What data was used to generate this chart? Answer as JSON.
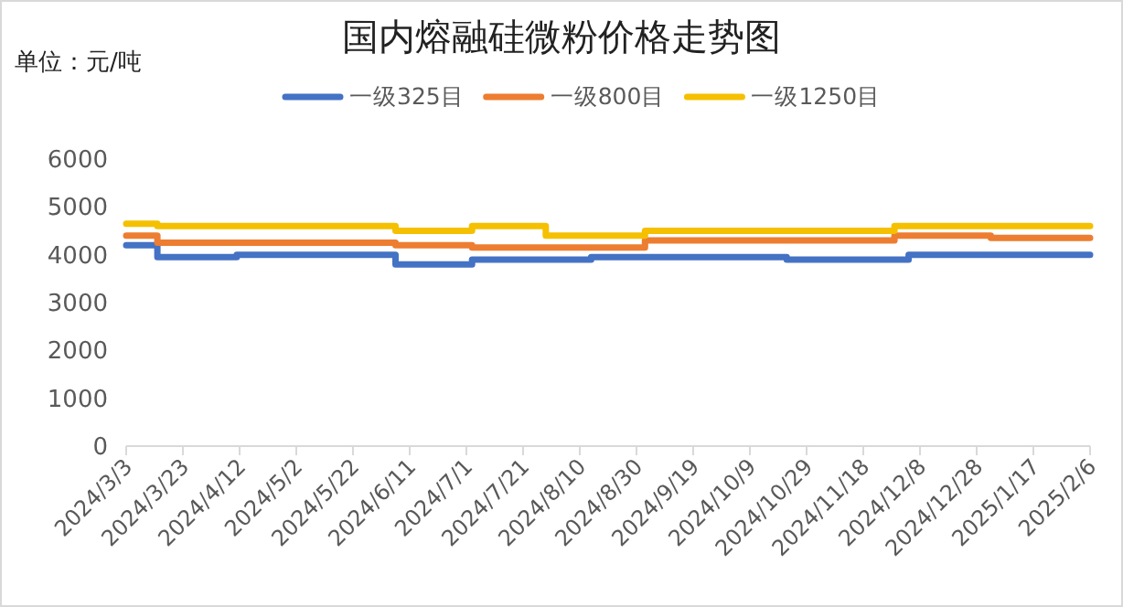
{
  "chart_data": {
    "type": "step",
    "title": "国内熔融硅微粉价格走势图",
    "ylabel": "单位：元/吨",
    "legend": "top",
    "xlim": [
      "2024-03-03",
      "2025-02-06"
    ],
    "xticks": [
      {
        "value": "2024-03-03",
        "label": "2024/3/3"
      },
      {
        "value": "2024-03-23",
        "label": "2024/3/23"
      },
      {
        "value": "2024-04-12",
        "label": "2024/4/12"
      },
      {
        "value": "2024-05-02",
        "label": "2024/5/2"
      },
      {
        "value": "2024-05-22",
        "label": "2024/5/22"
      },
      {
        "value": "2024-06-11",
        "label": "2024/6/11"
      },
      {
        "value": "2024-07-01",
        "label": "2024/7/1"
      },
      {
        "value": "2024-07-21",
        "label": "2024/7/21"
      },
      {
        "value": "2024-08-10",
        "label": "2024/8/10"
      },
      {
        "value": "2024-08-30",
        "label": "2024/8/30"
      },
      {
        "value": "2024-09-19",
        "label": "2024/9/19"
      },
      {
        "value": "2024-10-09",
        "label": "2024/10/9"
      },
      {
        "value": "2024-10-29",
        "label": "2024/10/29"
      },
      {
        "value": "2024-11-18",
        "label": "2024/11/18"
      },
      {
        "value": "2024-12-08",
        "label": "2024/12/8"
      },
      {
        "value": "2024-12-28",
        "label": "2024/12/28"
      },
      {
        "value": "2025-01-17",
        "label": "2025/1/17"
      },
      {
        "value": "2025-02-06",
        "label": "2025/2/6"
      }
    ],
    "ylim": [
      0,
      6000
    ],
    "yticks": [
      0,
      1000,
      2000,
      3000,
      4000,
      5000,
      6000
    ],
    "series": [
      {
        "name": "一级325目",
        "color": "#4472c4",
        "x": [
          "2024-03-03",
          "2024-03-14",
          "2024-04-11",
          "2024-06-06",
          "2024-07-03",
          "2024-08-14",
          "2024-10-22",
          "2024-12-04",
          "2025-02-06"
        ],
        "values": [
          4200,
          3950,
          4000,
          3800,
          3900,
          3950,
          3900,
          4000,
          4000
        ]
      },
      {
        "name": "一级800目",
        "color": "#ed7d31",
        "x": [
          "2024-03-03",
          "2024-03-14",
          "2024-06-06",
          "2024-07-03",
          "2024-09-02",
          "2024-11-29",
          "2025-01-02",
          "2025-02-06"
        ],
        "values": [
          4400,
          4250,
          4200,
          4150,
          4300,
          4400,
          4350,
          4350
        ]
      },
      {
        "name": "一级1250目",
        "color": "#f5c000",
        "x": [
          "2024-03-03",
          "2024-03-14",
          "2024-06-06",
          "2024-07-03",
          "2024-07-29",
          "2024-09-02",
          "2024-11-29",
          "2025-02-06"
        ],
        "values": [
          4650,
          4600,
          4500,
          4600,
          4400,
          4500,
          4600,
          4600
        ]
      }
    ]
  }
}
